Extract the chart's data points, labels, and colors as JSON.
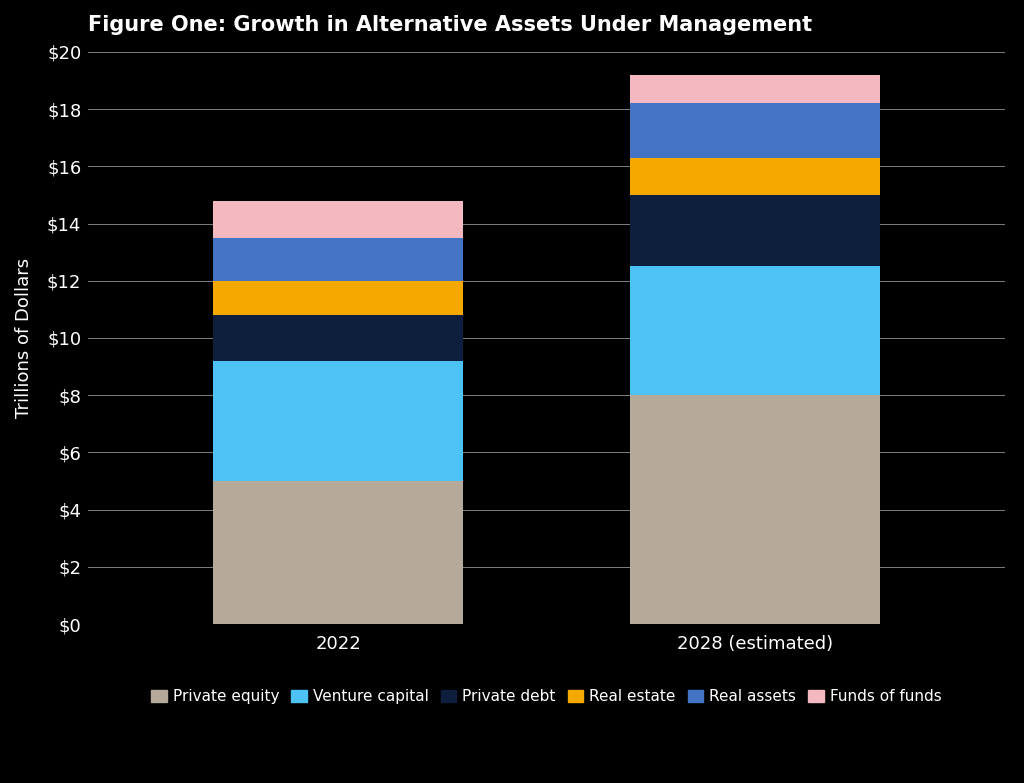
{
  "title": "Figure One: Growth in Alternative Assets Under Management",
  "ylabel": "Trillions of Dollars",
  "categories": [
    "2022",
    "2028 (estimated)"
  ],
  "segments": [
    {
      "label": "Private equity",
      "color": "#b5a99a",
      "values": [
        5.0,
        8.0
      ]
    },
    {
      "label": "Venture capital",
      "color": "#4dc3f5",
      "values": [
        4.2,
        4.5
      ]
    },
    {
      "label": "Private debt",
      "color": "#0d1f3c",
      "values": [
        1.6,
        2.5
      ]
    },
    {
      "label": "Real estate",
      "color": "#f5a800",
      "values": [
        1.2,
        1.3
      ]
    },
    {
      "label": "Real assets",
      "color": "#4472c4",
      "values": [
        1.5,
        1.9
      ]
    },
    {
      "label": "Funds of funds",
      "color": "#f4b8c1",
      "values": [
        1.3,
        1.0
      ]
    }
  ],
  "ylim": [
    0,
    20
  ],
  "yticks": [
    0,
    2,
    4,
    6,
    8,
    10,
    12,
    14,
    16,
    18,
    20
  ],
  "ytick_labels": [
    "$0",
    "$2",
    "$4",
    "$6",
    "$8",
    "$10",
    "$12",
    "$14",
    "$16",
    "$18",
    "$20"
  ],
  "background_color": "#000000",
  "text_color": "#ffffff",
  "grid_color": "#ffffff",
  "bar_width": 0.6,
  "title_fontsize": 15,
  "axis_label_fontsize": 13,
  "tick_fontsize": 13,
  "legend_fontsize": 11
}
